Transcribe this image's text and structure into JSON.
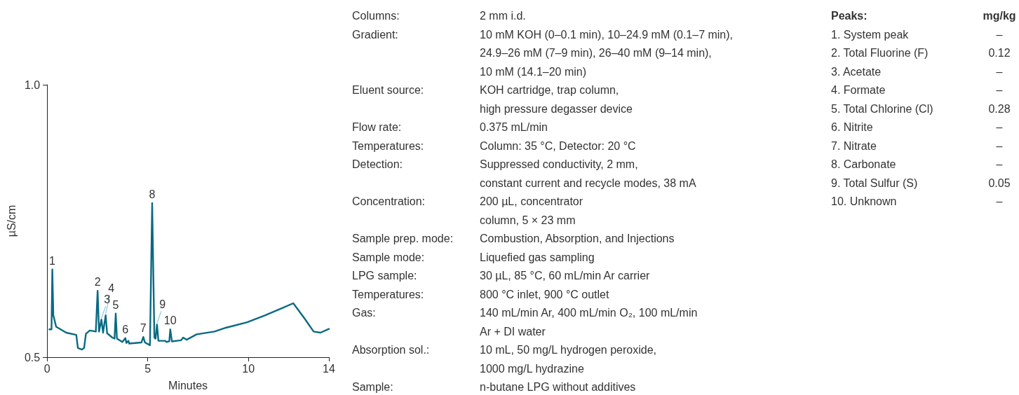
{
  "chart_data": {
    "type": "line",
    "xlabel": "Minutes",
    "ylabel": "µS/cm",
    "x": [
      0.11,
      0.22,
      0.26,
      0.31,
      0.45,
      0.95,
      1.45,
      1.53,
      1.73,
      1.84,
      1.93,
      2.12,
      2.42,
      2.51,
      2.58,
      2.7,
      2.78,
      2.91,
      2.98,
      3.24,
      3.35,
      3.41,
      3.47,
      3.74,
      3.89,
      3.94,
      4.04,
      4.08,
      4.69,
      4.78,
      4.86,
      5.11,
      5.22,
      5.33,
      5.39,
      5.46,
      5.53,
      5.87,
      5.92,
      6.07,
      6.12,
      6.2,
      6.65,
      6.76,
      6.93,
      7.43,
      8.32,
      8.88,
      9.94,
      10.84,
      11.68,
      12.23,
      12.79,
      13.24,
      13.58,
      14.0
    ],
    "series": [
      {
        "color": "#0a6a82",
        "values": [
          0.551,
          0.551,
          0.661,
          0.577,
          0.556,
          0.545,
          0.541,
          0.517,
          0.514,
          0.517,
          0.543,
          0.549,
          0.547,
          0.622,
          0.547,
          0.569,
          0.545,
          0.577,
          0.544,
          0.536,
          0.534,
          0.58,
          0.534,
          0.528,
          0.535,
          0.526,
          0.53,
          0.525,
          0.527,
          0.537,
          0.527,
          0.522,
          0.783,
          0.536,
          0.534,
          0.56,
          0.53,
          0.53,
          0.528,
          0.529,
          0.551,
          0.529,
          0.531,
          0.536,
          0.532,
          0.542,
          0.547,
          0.554,
          0.564,
          0.577,
          0.59,
          0.599,
          0.571,
          0.547,
          0.545,
          0.552
        ]
      }
    ],
    "xlim": [
      0,
      14
    ],
    "xticks": [
      0,
      5,
      10,
      14
    ],
    "ylim": [
      0.5,
      1.0
    ],
    "yticks": [
      {
        "value": 0.5,
        "label": "0.5"
      },
      {
        "value": 1.0,
        "label": "1.0"
      }
    ],
    "grid": false,
    "marker": "none",
    "line_style": "solid",
    "annotations": [
      {
        "text": "1",
        "x": 0.26,
        "y": 0.661
      },
      {
        "text": "2",
        "x": 2.51,
        "y": 0.622
      },
      {
        "text": "3",
        "x": 2.7,
        "y": 0.569
      },
      {
        "text": "4",
        "x": 2.91,
        "y": 0.577
      },
      {
        "text": "5",
        "x": 3.41,
        "y": 0.58
      },
      {
        "text": "6",
        "x": 3.89,
        "y": 0.535
      },
      {
        "text": "7",
        "x": 4.78,
        "y": 0.537
      },
      {
        "text": "8",
        "x": 5.22,
        "y": 0.783
      },
      {
        "text": "9",
        "x": 5.46,
        "y": 0.56
      },
      {
        "text": "10",
        "x": 6.12,
        "y": 0.551
      },
      "Columns:\t2 mm i.d.\nGradient:\t10 mM KOH (0–0.1 min), 10–24.9 mM (0.1–7 min),\n\t24.9–26 mM (7–9 min), 26–40 mM (9–14 min),\n\t10 mM (14.1–20 min)\nEluent source:\tKOH cartridge, trap column,\n\thigh pressure degasser device\nFlow rate:\t0.375 mL/min\nTemperatures:\tColumn: 35 °C, Detector: 20 °C\nDetection:\tSuppressed conductivity, 2 mm,\n\tconstant current and recycle modes, 38 mA\nConcentration:\t200 µL, concentrator\n\tcolumn, 5 × 23 mm\nSample prep. mode:\tCombustion, Absorption, and Injections\nSample mode:\tLiquefied gas sampling\nLPG sample:\t30 µL, 85 °C, 60 mL/min Ar carrier\nTemperatures:\t800 °C inlet, 900 °C outlet\nGas:\t140 mL/min Ar, 400 mL/min O₂, 100 mL/min\n\tAr + DI water\nAbsorption sol.:\t10 mL, 50 mg/L hydrogen peroxide,\n\t1000 mg/L hydrazine\nSample:\tn-butane LPG without additives",
      "Peaks:\tmg/kg\n1. System peak\t–\n2. Total Fluorine (F)\t0.12\n3. Acetate\t–\n4. Formate\t–\n5. Total Chlorine (Cl)\t0.28\n6. Nitrite\t–\n7. Nitrate\t–\n8. Carbonate\t–\n9. Total Sulfur (S)\t0.05\n10. Unknown\t–"
    ]
  }
}
